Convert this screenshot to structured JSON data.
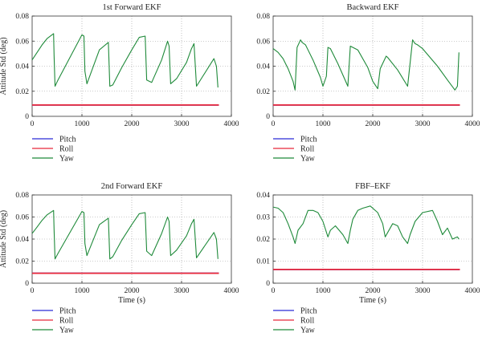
{
  "colors": {
    "pitch": "#2b2bd6",
    "roll": "#e8283a",
    "yaw": "#1f8a3a",
    "grid": "#9a9a9a",
    "axis": "#333333"
  },
  "chart_data": [
    {
      "type": "line",
      "title": "1st Forward EKF",
      "xlabel": "",
      "ylabel": "Attitude Std (deg)",
      "xlim": [
        0,
        4000
      ],
      "ylim": [
        0,
        0.08
      ],
      "xticks": [
        "0",
        "1000",
        "2000",
        "3000",
        "4000"
      ],
      "yticks": [
        "0",
        "0.02",
        "0.04",
        "0.06",
        "0.08"
      ],
      "grid": true,
      "legend_position": "below",
      "series": [
        {
          "name": "Pitch",
          "color_key": "pitch",
          "x": [
            0,
            3750
          ],
          "y": [
            0.009,
            0.009
          ]
        },
        {
          "name": "Roll",
          "color_key": "roll",
          "x": [
            0,
            3750
          ],
          "y": [
            0.009,
            0.009
          ]
        },
        {
          "name": "Yaw",
          "color_key": "yaw",
          "x": [
            0,
            100,
            200,
            300,
            430,
            440,
            460,
            520,
            1000,
            1040,
            1060,
            1100,
            1350,
            1530,
            1560,
            1620,
            1800,
            2000,
            2150,
            2270,
            2300,
            2400,
            2600,
            2720,
            2750,
            2780,
            2900,
            3100,
            3200,
            3250,
            3300,
            3650,
            3700,
            3730
          ],
          "y": [
            0.045,
            0.051,
            0.057,
            0.062,
            0.066,
            0.049,
            0.024,
            0.029,
            0.065,
            0.064,
            0.036,
            0.026,
            0.053,
            0.059,
            0.024,
            0.025,
            0.039,
            0.053,
            0.063,
            0.064,
            0.029,
            0.027,
            0.045,
            0.06,
            0.056,
            0.026,
            0.03,
            0.043,
            0.054,
            0.058,
            0.024,
            0.046,
            0.04,
            0.023
          ]
        }
      ]
    },
    {
      "type": "line",
      "title": "Backward EKF",
      "xlabel": "",
      "ylabel": "",
      "xlim": [
        0,
        4000
      ],
      "ylim": [
        0,
        0.08
      ],
      "xticks": [
        "0",
        "1000",
        "2000",
        "3000",
        "4000"
      ],
      "yticks": [
        "0",
        "0.02",
        "0.04",
        "0.06",
        "0.08"
      ],
      "grid": true,
      "legend_position": "below",
      "series": [
        {
          "name": "Pitch",
          "color_key": "pitch",
          "x": [
            0,
            3750
          ],
          "y": [
            0.009,
            0.009
          ]
        },
        {
          "name": "Roll",
          "color_key": "roll",
          "x": [
            0,
            3750
          ],
          "y": [
            0.009,
            0.009
          ]
        },
        {
          "name": "Yaw",
          "color_key": "yaw",
          "x": [
            0,
            100,
            200,
            300,
            400,
            440,
            480,
            550,
            580,
            650,
            800,
            950,
            1000,
            1070,
            1100,
            1150,
            1300,
            1500,
            1550,
            1700,
            1900,
            2000,
            2100,
            2150,
            2270,
            2300,
            2500,
            2700,
            2800,
            2850,
            2900,
            3000,
            3300,
            3500,
            3650,
            3700,
            3730
          ],
          "y": [
            0.054,
            0.051,
            0.046,
            0.038,
            0.028,
            0.021,
            0.055,
            0.061,
            0.059,
            0.057,
            0.045,
            0.031,
            0.024,
            0.032,
            0.055,
            0.054,
            0.042,
            0.024,
            0.056,
            0.053,
            0.039,
            0.028,
            0.022,
            0.038,
            0.048,
            0.047,
            0.037,
            0.024,
            0.061,
            0.058,
            0.057,
            0.054,
            0.04,
            0.029,
            0.021,
            0.024,
            0.051
          ]
        }
      ]
    },
    {
      "type": "line",
      "title": "2nd Forward EKF",
      "xlabel": "Time (s)",
      "ylabel": "Attitude Std (deg)",
      "xlim": [
        0,
        4000
      ],
      "ylim": [
        0,
        0.08
      ],
      "xticks": [
        "0",
        "1000",
        "2000",
        "3000",
        "4000"
      ],
      "yticks": [
        "0",
        "0.02",
        "0.04",
        "0.06",
        "0.08"
      ],
      "grid": true,
      "legend_position": "below",
      "series": [
        {
          "name": "Pitch",
          "color_key": "pitch",
          "x": [
            0,
            3750
          ],
          "y": [
            0.009,
            0.009
          ]
        },
        {
          "name": "Roll",
          "color_key": "roll",
          "x": [
            0,
            3750
          ],
          "y": [
            0.009,
            0.009
          ]
        },
        {
          "name": "Yaw",
          "color_key": "yaw",
          "x": [
            0,
            100,
            200,
            300,
            430,
            440,
            460,
            520,
            1000,
            1040,
            1060,
            1100,
            1350,
            1530,
            1560,
            1620,
            1800,
            2000,
            2150,
            2270,
            2300,
            2400,
            2600,
            2720,
            2750,
            2780,
            2900,
            3100,
            3200,
            3250,
            3300,
            3650,
            3700,
            3730
          ],
          "y": [
            0.045,
            0.051,
            0.057,
            0.062,
            0.066,
            0.049,
            0.022,
            0.027,
            0.065,
            0.064,
            0.036,
            0.025,
            0.053,
            0.059,
            0.022,
            0.024,
            0.039,
            0.053,
            0.063,
            0.064,
            0.029,
            0.025,
            0.045,
            0.06,
            0.056,
            0.025,
            0.03,
            0.043,
            0.054,
            0.058,
            0.023,
            0.046,
            0.04,
            0.022
          ]
        }
      ]
    },
    {
      "type": "line",
      "title": "FBF–EKF",
      "xlabel": "Time (s)",
      "ylabel": "",
      "xlim": [
        0,
        4000
      ],
      "ylim": [
        0,
        0.04
      ],
      "xticks": [
        "0",
        "1000",
        "2000",
        "3000",
        "4000"
      ],
      "yticks": [
        "0",
        "0.01",
        "0.02",
        "0.03",
        "0.04"
      ],
      "grid": true,
      "legend_position": "below",
      "series": [
        {
          "name": "Pitch",
          "color_key": "pitch",
          "x": [
            0,
            3750
          ],
          "y": [
            0.0062,
            0.0062
          ]
        },
        {
          "name": "Roll",
          "color_key": "roll",
          "x": [
            0,
            3750
          ],
          "y": [
            0.0062,
            0.0062
          ]
        },
        {
          "name": "Yaw",
          "color_key": "yaw",
          "x": [
            0,
            100,
            200,
            300,
            400,
            440,
            500,
            600,
            700,
            800,
            900,
            1000,
            1100,
            1150,
            1250,
            1400,
            1500,
            1550,
            1600,
            1700,
            1800,
            1950,
            2100,
            2200,
            2250,
            2300,
            2400,
            2500,
            2600,
            2700,
            2750,
            2850,
            3000,
            3200,
            3300,
            3400,
            3500,
            3600,
            3700,
            3730
          ],
          "y": [
            0.0345,
            0.034,
            0.032,
            0.027,
            0.021,
            0.018,
            0.024,
            0.027,
            0.033,
            0.033,
            0.032,
            0.028,
            0.021,
            0.024,
            0.026,
            0.022,
            0.018,
            0.024,
            0.029,
            0.033,
            0.034,
            0.035,
            0.032,
            0.027,
            0.021,
            0.023,
            0.027,
            0.026,
            0.021,
            0.018,
            0.022,
            0.028,
            0.032,
            0.033,
            0.028,
            0.022,
            0.025,
            0.02,
            0.021,
            0.02
          ]
        }
      ]
    }
  ]
}
